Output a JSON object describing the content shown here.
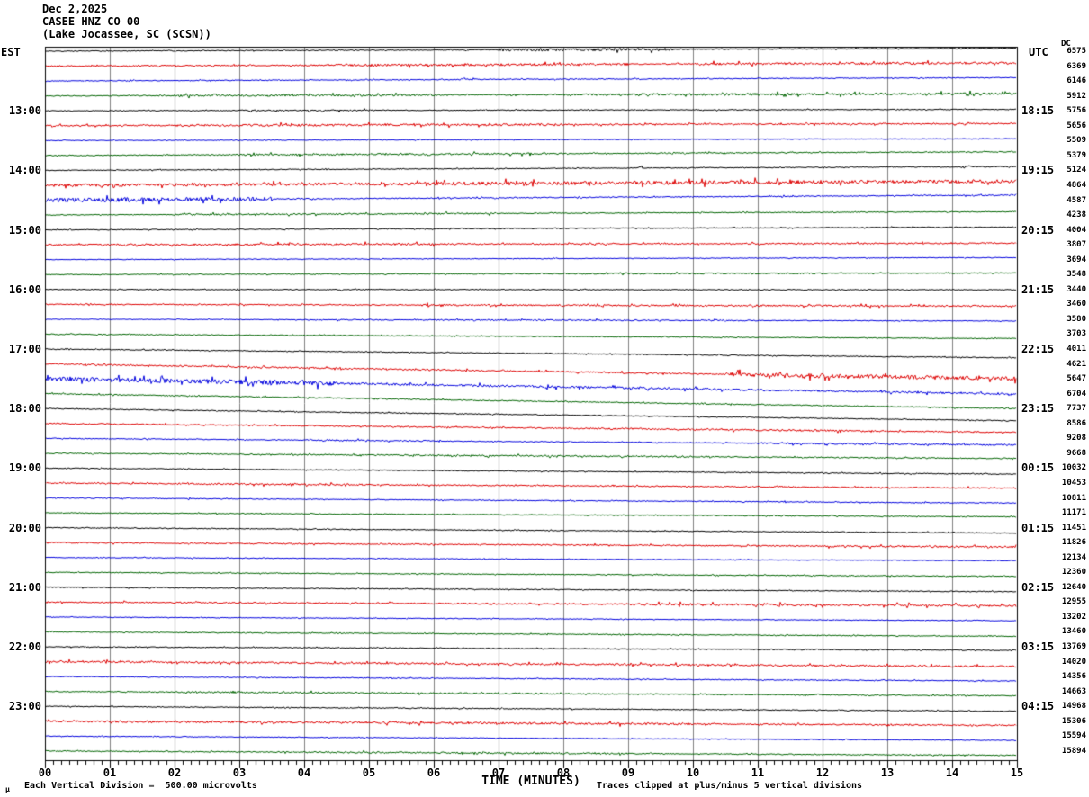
{
  "header": {
    "date": "Dec 2,2025",
    "station": "CASEE HNZ CO 00",
    "location": "(Lake Jocassee, SC (SCSN))"
  },
  "axes": {
    "left_timezone_label": "EST",
    "right_timezone_label": "UTC",
    "dc_column_header": "DC",
    "x_axis_label": "TIME (MINUTES)",
    "x_tick_labels": [
      "00",
      "01",
      "02",
      "03",
      "04",
      "05",
      "06",
      "07",
      "08",
      "09",
      "10",
      "11",
      "12",
      "13",
      "14",
      "15"
    ],
    "x_range_minutes": [
      0,
      15
    ],
    "minor_ticks_per_minute": 7
  },
  "footer": {
    "mu_glyph": "µ",
    "scale_note": "Each Vertical Division =  500.00 microvolts",
    "clip_note": "Traces clipped at plus/minus 5 vertical divisions"
  },
  "colors": {
    "black": "#000000",
    "red": "#dd0000",
    "blue": "#0000dd",
    "green": "#006400",
    "grid": "#808080",
    "background": "#ffffff"
  },
  "chart_data": {
    "type": "line",
    "title": "CASEE HNZ CO 00 (Lake Jocassee, SC (SCSN)) Dec 2,2025",
    "xlabel": "TIME (MINUTES)",
    "x_range": [
      0,
      15
    ],
    "row_duration_minutes": 15,
    "vertical_division_microvolts": 500.0,
    "clip_divisions": 5,
    "color_cycle": [
      "black",
      "red",
      "blue",
      "green"
    ],
    "rows": [
      {
        "dc": 6575,
        "color": "black",
        "amp": 0.5,
        "segs": [
          [
            7,
            9.7,
            1.6
          ]
        ],
        "spikes": []
      },
      {
        "dc": 6369,
        "color": "red",
        "amp": 0.7,
        "segs": [
          [
            4.5,
            9,
            1.3
          ],
          [
            10,
            15,
            1.3
          ]
        ],
        "spikes": []
      },
      {
        "dc": 6146,
        "color": "blue",
        "amp": 0.5,
        "segs": [],
        "spikes": [
          [
            6.55,
            0.18,
            5,
            5
          ]
        ]
      },
      {
        "dc": 5912,
        "color": "green",
        "amp": 0.6,
        "segs": [
          [
            2,
            6,
            1.2
          ],
          [
            8,
            15,
            1.3
          ]
        ],
        "spikes": []
      },
      {
        "dc": 5756,
        "color": "black",
        "est": "13:00",
        "utc": "18:15",
        "amp": 0.5,
        "segs": [
          [
            3,
            5,
            0.8
          ]
        ],
        "spikes": []
      },
      {
        "dc": 5656,
        "color": "red",
        "amp": 0.8,
        "segs": [
          [
            2,
            8,
            1.2
          ]
        ],
        "spikes": []
      },
      {
        "dc": 5509,
        "color": "blue",
        "amp": 0.4,
        "segs": [],
        "spikes": [
          [
            0.3,
            0.1,
            2,
            2
          ]
        ]
      },
      {
        "dc": 5379,
        "color": "green",
        "amp": 0.6,
        "segs": [
          [
            3,
            8,
            1.0
          ]
        ],
        "spikes": []
      },
      {
        "dc": 5124,
        "color": "black",
        "est": "14:00",
        "utc": "19:15",
        "amp": 0.5,
        "segs": [],
        "spikes": [
          [
            9.2,
            0.1,
            3.5,
            3.5
          ],
          [
            14.2,
            0.1,
            3.5,
            3.5
          ]
        ]
      },
      {
        "dc": 4864,
        "color": "red",
        "amp": 1.2,
        "segs": [
          [
            0,
            6,
            1.6
          ],
          [
            6,
            15,
            2.0
          ]
        ],
        "spikes": [
          [
            3.9,
            0.12,
            3,
            1
          ]
        ]
      },
      {
        "dc": 4587,
        "color": "blue",
        "amp": 0.6,
        "segs": [
          [
            0,
            3.5,
            2.3
          ]
        ],
        "spikes": []
      },
      {
        "dc": 4238,
        "color": "green",
        "amp": 0.5,
        "segs": [
          [
            2,
            7,
            0.9
          ]
        ],
        "spikes": []
      },
      {
        "dc": 4004,
        "color": "black",
        "est": "15:00",
        "utc": "20:15",
        "amp": 0.5,
        "segs": [],
        "spikes": []
      },
      {
        "dc": 3807,
        "color": "red",
        "amp": 0.8,
        "segs": [
          [
            1,
            6,
            1.1
          ]
        ],
        "spikes": []
      },
      {
        "dc": 3694,
        "color": "blue",
        "amp": 0.4,
        "segs": [],
        "spikes": []
      },
      {
        "dc": 3548,
        "color": "green",
        "amp": 0.5,
        "segs": [
          [
            8,
            12,
            0.8
          ]
        ],
        "spikes": [
          [
            8.85,
            0.08,
            2.5,
            1
          ]
        ]
      },
      {
        "dc": 3440,
        "color": "black",
        "est": "16:00",
        "utc": "21:15",
        "amp": 0.5,
        "segs": [],
        "spikes": []
      },
      {
        "dc": 3460,
        "color": "red",
        "amp": 0.6,
        "segs": [
          [
            6,
            15,
            0.9
          ]
        ],
        "spikes": [
          [
            5.9,
            0.07,
            6,
            6
          ]
        ]
      },
      {
        "dc": 3580,
        "color": "blue",
        "amp": 0.4,
        "segs": [
          [
            4.5,
            11,
            0.7
          ]
        ],
        "spikes": []
      },
      {
        "dc": 3703,
        "color": "green",
        "amp": 0.5,
        "segs": [],
        "spikes": []
      },
      {
        "dc": 4011,
        "color": "black",
        "est": "17:00",
        "utc": "22:15",
        "amp": 0.5,
        "segs": [],
        "spikes": []
      },
      {
        "dc": 4621,
        "color": "red",
        "amp": 0.8,
        "segs": [
          [
            10.5,
            15,
            2.2
          ]
        ],
        "spikes": []
      },
      {
        "dc": 5647,
        "color": "blue",
        "amp": 1.0,
        "segs": [
          [
            0,
            4.5,
            2.5
          ],
          [
            4.5,
            11,
            1.2
          ]
        ],
        "spikes": []
      },
      {
        "dc": 6704,
        "color": "green",
        "amp": 0.6,
        "segs": [],
        "spikes": []
      },
      {
        "dc": 7737,
        "color": "black",
        "est": "18:00",
        "utc": "23:15",
        "amp": 0.5,
        "segs": [],
        "spikes": []
      },
      {
        "dc": 8586,
        "color": "red",
        "amp": 0.7,
        "segs": [
          [
            8,
            13,
            1.0
          ]
        ],
        "spikes": []
      },
      {
        "dc": 9208,
        "color": "blue",
        "amp": 0.5,
        "segs": [
          [
            4,
            6,
            0.8
          ],
          [
            11,
            15,
            0.9
          ]
        ],
        "spikes": []
      },
      {
        "dc": 9668,
        "color": "green",
        "amp": 0.6,
        "segs": [
          [
            5,
            10,
            0.9
          ]
        ],
        "spikes": []
      },
      {
        "dc": 10032,
        "color": "black",
        "est": "19:00",
        "utc": "00:15",
        "amp": 0.5,
        "segs": [],
        "spikes": []
      },
      {
        "dc": 10453,
        "color": "red",
        "amp": 0.7,
        "segs": [
          [
            2,
            5,
            1.0
          ]
        ],
        "spikes": []
      },
      {
        "dc": 10811,
        "color": "blue",
        "amp": 0.5,
        "segs": [],
        "spikes": []
      },
      {
        "dc": 11171,
        "color": "green",
        "amp": 0.5,
        "segs": [],
        "spikes": []
      },
      {
        "dc": 11451,
        "color": "black",
        "est": "20:00",
        "utc": "01:15",
        "amp": 0.5,
        "segs": [],
        "spikes": []
      },
      {
        "dc": 11826,
        "color": "red",
        "amp": 0.7,
        "segs": [
          [
            12,
            15,
            1.0
          ]
        ],
        "spikes": []
      },
      {
        "dc": 12134,
        "color": "blue",
        "amp": 0.4,
        "segs": [],
        "spikes": []
      },
      {
        "dc": 12360,
        "color": "green",
        "amp": 0.5,
        "segs": [],
        "spikes": []
      },
      {
        "dc": 12640,
        "color": "black",
        "est": "21:00",
        "utc": "02:15",
        "amp": 0.5,
        "segs": [],
        "spikes": []
      },
      {
        "dc": 12955,
        "color": "red",
        "amp": 0.8,
        "segs": [
          [
            9,
            15,
            1.2
          ]
        ],
        "spikes": []
      },
      {
        "dc": 13202,
        "color": "blue",
        "amp": 0.4,
        "segs": [],
        "spikes": []
      },
      {
        "dc": 13460,
        "color": "green",
        "amp": 0.5,
        "segs": [],
        "spikes": []
      },
      {
        "dc": 13769,
        "color": "black",
        "est": "22:00",
        "utc": "03:15",
        "amp": 0.5,
        "segs": [],
        "spikes": []
      },
      {
        "dc": 14020,
        "color": "red",
        "amp": 0.8,
        "segs": [
          [
            0,
            15,
            1.0
          ]
        ],
        "spikes": []
      },
      {
        "dc": 14356,
        "color": "blue",
        "amp": 0.5,
        "segs": [],
        "spikes": []
      },
      {
        "dc": 14663,
        "color": "green",
        "amp": 0.6,
        "segs": [
          [
            2,
            8,
            0.9
          ]
        ],
        "spikes": []
      },
      {
        "dc": 14968,
        "color": "black",
        "est": "23:00",
        "utc": "04:15",
        "amp": 0.5,
        "segs": [],
        "spikes": []
      },
      {
        "dc": 15306,
        "color": "red",
        "amp": 0.8,
        "segs": [
          [
            0,
            10,
            1.2
          ]
        ],
        "spikes": []
      },
      {
        "dc": 15594,
        "color": "blue",
        "amp": 0.4,
        "segs": [],
        "spikes": []
      },
      {
        "dc": 15894,
        "color": "green",
        "amp": 0.6,
        "segs": [
          [
            4,
            9,
            1.0
          ]
        ],
        "spikes": []
      }
    ]
  }
}
